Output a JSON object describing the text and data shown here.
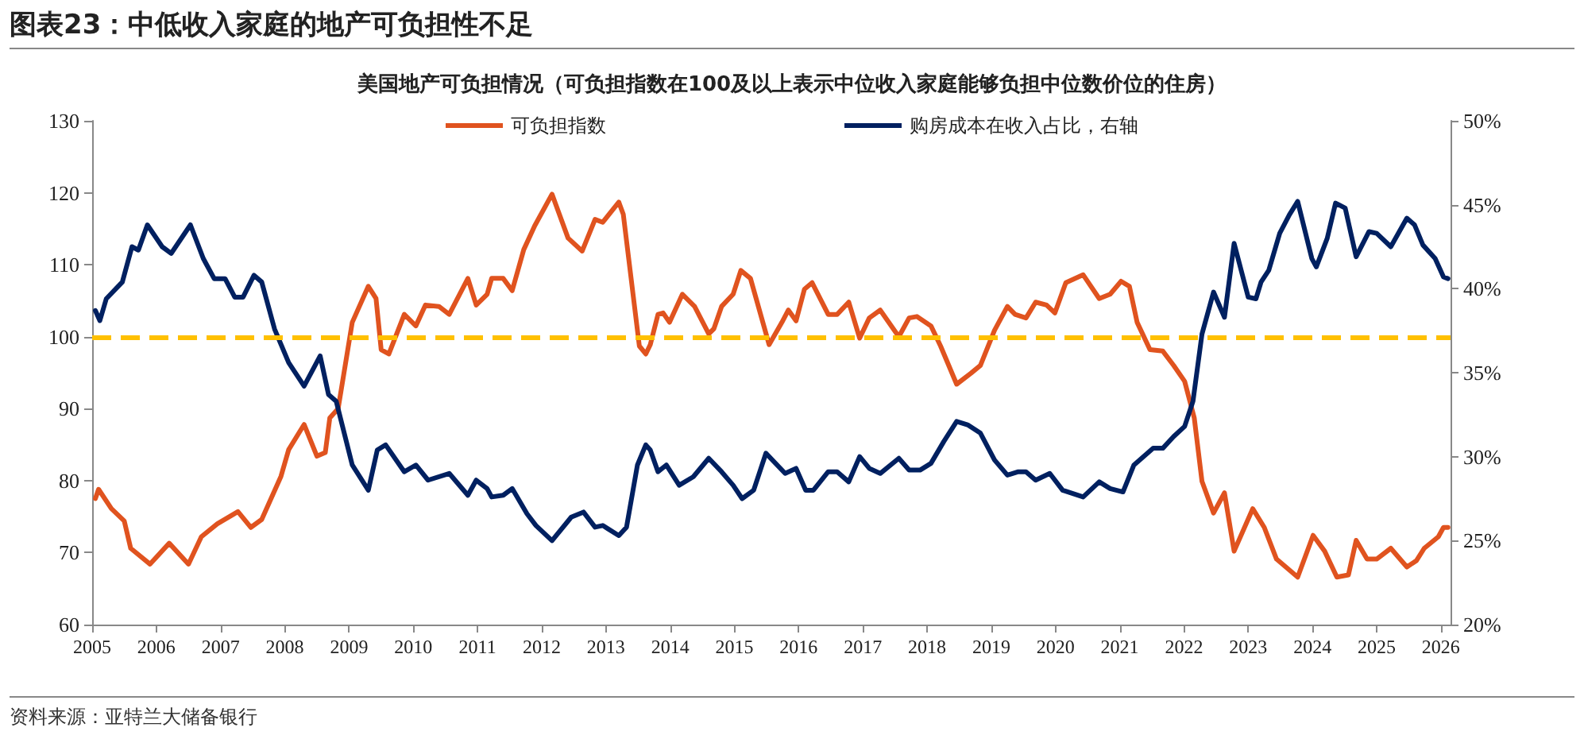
{
  "chart_data": {
    "type": "line",
    "title": "图表23：中低收入家庭的地产可负担性不足",
    "subtitle": "美国地产可负担情况（可负担指数在100及以上表示中位收入家庭能够负担中位数价位的住房）",
    "annotations": [
      "资料来源：亚特兰大储备银行"
    ],
    "series": [
      {
        "name": "可负担指数",
        "color": "#e0531f",
        "x": [
          2005.05,
          2005.1,
          2005.3,
          2005.5,
          2005.6,
          2005.9,
          2006.2,
          2006.5,
          2006.7,
          2006.95,
          2007.27,
          2007.47,
          2007.64,
          2007.94,
          2008.06,
          2008.3,
          2008.5,
          2008.63,
          2008.7,
          2008.83,
          2009.05,
          2009.3,
          2009.42,
          2009.5,
          2009.62,
          2009.86,
          2010.04,
          2010.19,
          2010.4,
          2010.56,
          2010.85,
          2010.98,
          2011.15,
          2011.22,
          2011.4,
          2011.54,
          2011.72,
          2011.89,
          2012.16,
          2012.41,
          2012.63,
          2012.83,
          2012.95,
          2013.2,
          2013.27,
          2013.52,
          2013.62,
          2013.69,
          2013.81,
          2013.89,
          2013.99,
          2014.19,
          2014.38,
          2014.6,
          2014.68,
          2014.8,
          2014.98,
          2015.1,
          2015.25,
          2015.54,
          2015.74,
          2015.84,
          2015.96,
          2016.09,
          2016.21,
          2016.46,
          2016.6,
          2016.78,
          2016.95,
          2017.1,
          2017.27,
          2017.56,
          2017.72,
          2017.84,
          2018.06,
          2018.21,
          2018.46,
          2018.68,
          2018.83,
          2019.05,
          2019.25,
          2019.37,
          2019.54,
          2019.69,
          2019.86,
          2019.99,
          2020.16,
          2020.43,
          2020.68,
          2020.85,
          2021.02,
          2021.15,
          2021.27,
          2021.47,
          2021.67,
          2021.84,
          2022.01,
          2022.16,
          2022.28,
          2022.46,
          2022.63,
          2022.78,
          2023.07,
          2023.25,
          2023.44,
          2023.77,
          2024.01,
          2024.19,
          2024.38,
          2024.56,
          2024.68,
          2024.85,
          2025.0,
          2025.22,
          2025.47,
          2025.62,
          2025.74,
          2025.96,
          2026.04,
          2026.11
        ],
        "values": [
          77.5,
          78.8,
          76.1,
          74.4,
          70.6,
          68.4,
          71.3,
          68.4,
          72.2,
          74,
          75.7,
          73.5,
          74.6,
          80.6,
          84.3,
          87.8,
          83.4,
          83.9,
          88.7,
          90,
          102,
          107,
          105.3,
          98.2,
          97.6,
          103.1,
          101.5,
          104.4,
          104.2,
          103.1,
          108.1,
          104.4,
          105.9,
          108.1,
          108.1,
          106.4,
          112.1,
          115.4,
          119.8,
          113.7,
          111.9,
          116.3,
          115.9,
          118.7,
          117,
          98.7,
          97.6,
          98.9,
          103.1,
          103.3,
          102,
          105.9,
          104.2,
          100.4,
          101.1,
          104.2,
          105.9,
          109.2,
          108.1,
          98.9,
          102,
          103.7,
          102.2,
          106.6,
          107.5,
          103.1,
          103.1,
          104.8,
          99.8,
          102.6,
          103.7,
          100,
          102.6,
          102.8,
          101.5,
          98.7,
          93.4,
          94.9,
          96,
          100.9,
          104.2,
          103.1,
          102.6,
          104.8,
          104.4,
          103.3,
          107.5,
          108.6,
          105.3,
          105.9,
          107.7,
          107,
          102,
          98.2,
          98,
          96,
          93.8,
          88.7,
          79.9,
          75.5,
          78.3,
          70.2,
          76.1,
          73.5,
          69.1,
          66.6,
          72.4,
          70.2,
          66.6,
          66.9,
          71.7,
          69.1,
          69.1,
          70.6,
          68,
          68.9,
          70.6,
          72.2,
          73.5,
          73.5
        ]
      },
      {
        "name": "购房成本在收入占比，右轴",
        "color": "#002060",
        "axis": "y2",
        "x": [
          2005.05,
          2005.12,
          2005.22,
          2005.47,
          2005.62,
          2005.72,
          2005.86,
          2006.09,
          2006.23,
          2006.53,
          2006.73,
          2006.9,
          2007.07,
          2007.22,
          2007.35,
          2007.52,
          2007.64,
          2007.84,
          2008.06,
          2008.3,
          2008.55,
          2008.68,
          2008.8,
          2009.05,
          2009.3,
          2009.44,
          2009.57,
          2009.86,
          2010.04,
          2010.23,
          2010.56,
          2010.85,
          2010.98,
          2011.15,
          2011.22,
          2011.4,
          2011.54,
          2011.77,
          2011.91,
          2012.16,
          2012.46,
          2012.65,
          2012.83,
          2012.95,
          2013.2,
          2013.32,
          2013.49,
          2013.62,
          2013.69,
          2013.81,
          2013.94,
          2014.14,
          2014.36,
          2014.6,
          2014.8,
          2014.98,
          2015.12,
          2015.3,
          2015.49,
          2015.79,
          2015.96,
          2016.11,
          2016.23,
          2016.46,
          2016.6,
          2016.78,
          2016.95,
          2017.1,
          2017.27,
          2017.56,
          2017.72,
          2017.89,
          2018.06,
          2018.26,
          2018.46,
          2018.63,
          2018.83,
          2019.05,
          2019.25,
          2019.42,
          2019.54,
          2019.69,
          2019.91,
          2020.11,
          2020.43,
          2020.68,
          2020.85,
          2021.05,
          2021.22,
          2021.52,
          2021.67,
          2021.84,
          2022.01,
          2022.14,
          2022.28,
          2022.46,
          2022.63,
          2022.78,
          2023.0,
          2023.12,
          2023.2,
          2023.32,
          2023.49,
          2023.64,
          2023.77,
          2023.99,
          2024.06,
          2024.23,
          2024.36,
          2024.51,
          2024.68,
          2024.88,
          2025.0,
          2025.22,
          2025.47,
          2025.59,
          2025.72,
          2025.91,
          2026.04,
          2026.11
        ],
        "values": [
          38.7,
          38.1,
          39.4,
          40.4,
          42.5,
          42.3,
          43.8,
          42.5,
          42.1,
          43.8,
          41.8,
          40.6,
          40.6,
          39.5,
          39.5,
          40.8,
          40.4,
          37.6,
          35.6,
          34.2,
          36,
          33.7,
          33.3,
          29.5,
          28,
          30.4,
          30.7,
          29.1,
          29.5,
          28.6,
          29,
          27.7,
          28.6,
          28.1,
          27.6,
          27.7,
          28.1,
          26.6,
          25.9,
          25,
          26.4,
          26.7,
          25.8,
          25.9,
          25.3,
          25.8,
          29.5,
          30.7,
          30.4,
          29.1,
          29.5,
          28.3,
          28.8,
          29.9,
          29.1,
          28.3,
          27.5,
          28,
          30.2,
          29,
          29.3,
          28,
          28,
          29.1,
          29.1,
          28.5,
          30,
          29.3,
          29,
          29.9,
          29.2,
          29.2,
          29.6,
          30.9,
          32.1,
          31.9,
          31.4,
          29.8,
          28.9,
          29.1,
          29.1,
          28.6,
          29,
          28,
          27.6,
          28.5,
          28.1,
          27.9,
          29.5,
          30.5,
          30.5,
          31.2,
          31.8,
          33.3,
          37.3,
          39.8,
          38.3,
          42.7,
          39.5,
          39.4,
          40.4,
          41.1,
          43.3,
          44.4,
          45.2,
          41.8,
          41.3,
          43,
          45.1,
          44.8,
          41.9,
          43.4,
          43.3,
          42.5,
          44.2,
          43.8,
          42.6,
          41.8,
          40.7,
          40.6
        ]
      }
    ],
    "xlim": [
      2005,
      2026.15
    ],
    "xticks": [
      2005,
      2006,
      2007,
      2008,
      2009,
      2010,
      2011,
      2012,
      2013,
      2014,
      2015,
      2016,
      2017,
      2018,
      2019,
      2020,
      2021,
      2022,
      2023,
      2024,
      2025,
      2026
    ],
    "ylim": [
      60,
      130
    ],
    "yticks": [
      60,
      70,
      80,
      90,
      100,
      110,
      120,
      130
    ],
    "y2lim": [
      20,
      50
    ],
    "y2ticks": [
      {
        "value": 20,
        "label": "20%"
      },
      {
        "value": 25,
        "label": "25%"
      },
      {
        "value": 30,
        "label": "30%"
      },
      {
        "value": 35,
        "label": "35%"
      },
      {
        "value": 40,
        "label": "40%"
      },
      {
        "value": 45,
        "label": "45%"
      },
      {
        "value": 50,
        "label": "50%"
      }
    ],
    "ref_lines": [
      {
        "axis": "y",
        "value": 100,
        "color": "#ffc000",
        "line_style": "dashed"
      }
    ],
    "legend": "top",
    "grid": false,
    "marker": "none",
    "line_style": "solid"
  }
}
